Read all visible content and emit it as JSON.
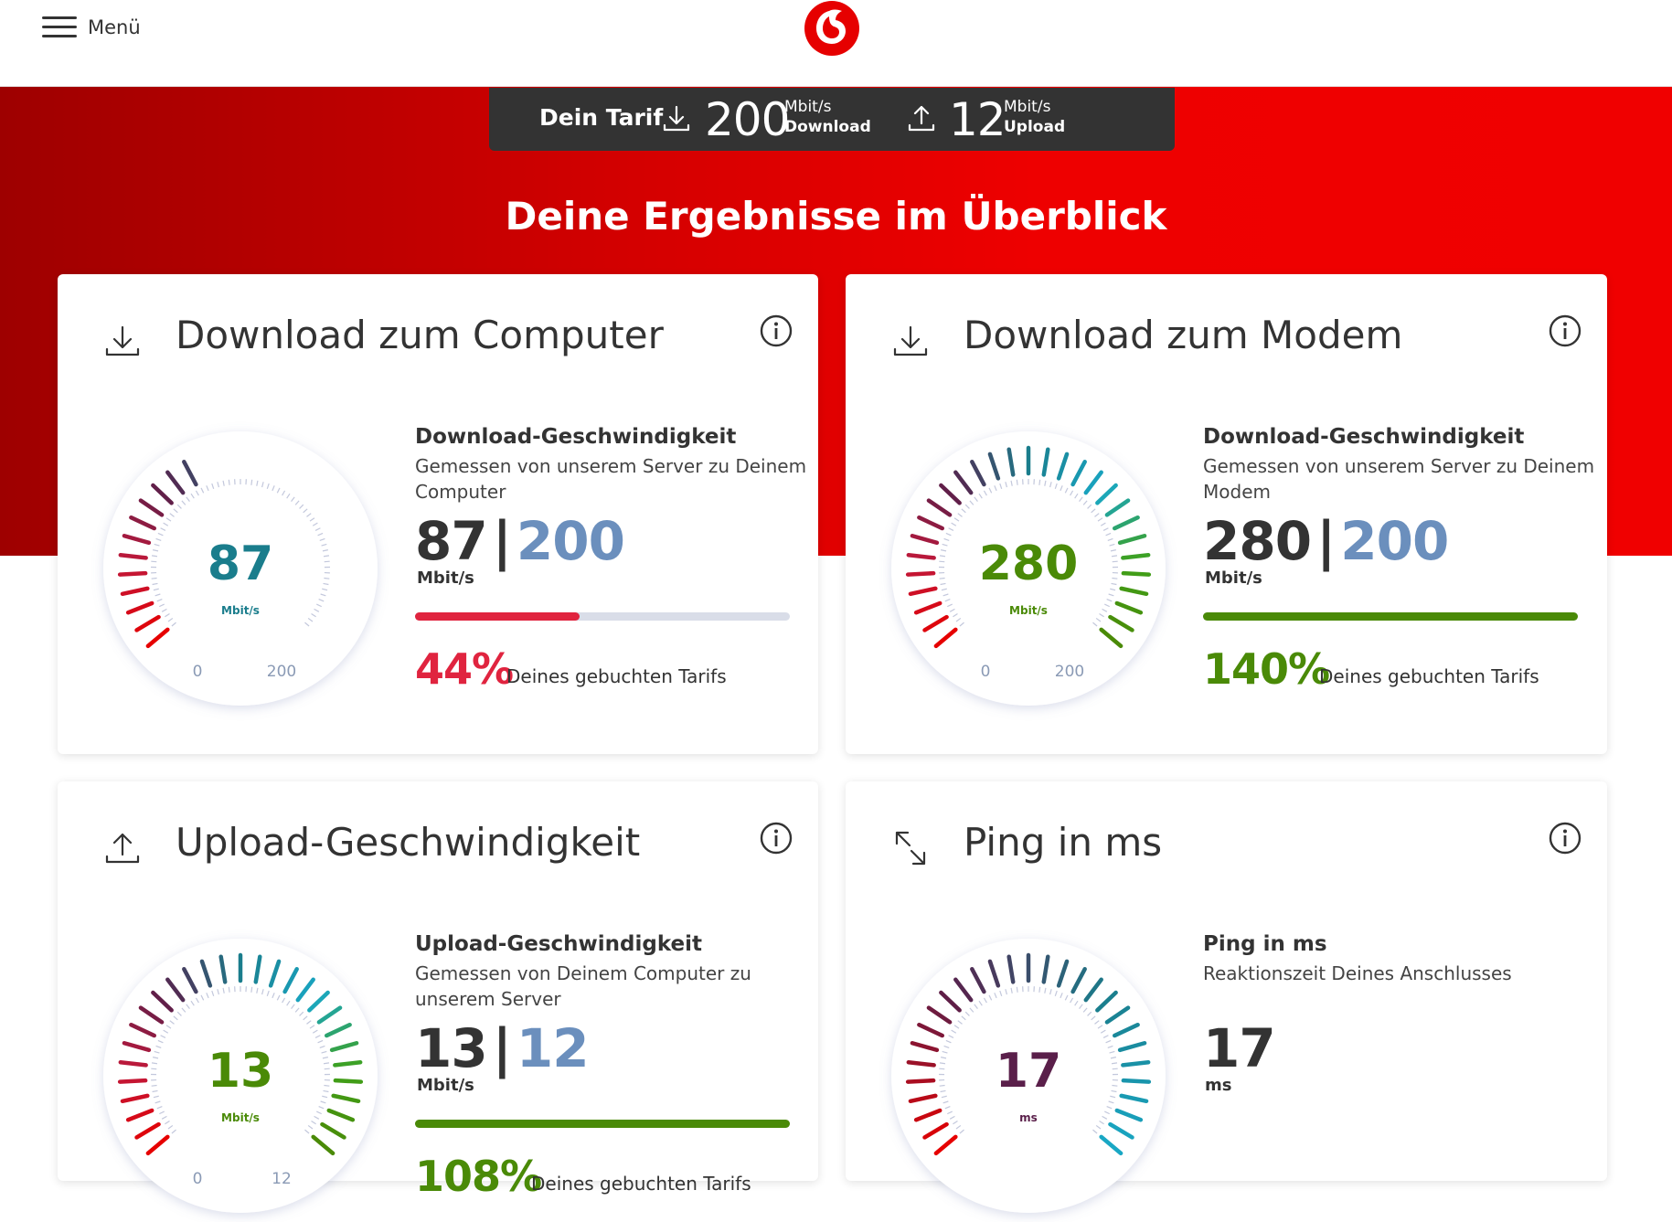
{
  "header": {
    "menu_label": "Menü"
  },
  "colors": {
    "brand": "#e60000",
    "tariff_value": "#6b8fbd",
    "good": "#4a8a07",
    "bad": "#e0243f",
    "teal": "#1a7d8c",
    "purple": "#5a1f4a"
  },
  "tariff": {
    "label": "Dein Tarif",
    "download_value": "200",
    "download_unit": "Mbit/s",
    "download_label": "Download",
    "upload_value": "12",
    "upload_unit": "Mbit/s",
    "upload_label": "Upload"
  },
  "hero_title": "Deine Ergebnisse im Überblick",
  "cards": [
    {
      "title": "Download zum Computer",
      "icon": "download-icon",
      "metric_title": "Download-Geschwindigkeit",
      "metric_sub": "Gemessen von unserem Server zu Deinem Computer",
      "measured": "87",
      "separator": "|",
      "tariff": "200",
      "unit": "Mbit/s",
      "percent": "44%",
      "percent_text": "Deines gebuchten Tarifs",
      "gauge": {
        "value": "87",
        "unit": "Mbit/s",
        "min": "0",
        "max": "200",
        "fraction": 0.44,
        "value_color": "#1a7d8c"
      },
      "bar_fraction": 0.44,
      "status_color": "#e0243f"
    },
    {
      "title": "Download zum Modem",
      "icon": "download-icon",
      "metric_title": "Download-Geschwindigkeit",
      "metric_sub": "Gemessen von unserem Server zu Deinem Modem",
      "measured": "280",
      "separator": "|",
      "tariff": "200",
      "unit": "Mbit/s",
      "percent": "140%",
      "percent_text": "Deines gebuchten Tarifs",
      "gauge": {
        "value": "280",
        "unit": "Mbit/s",
        "min": "0",
        "max": "200",
        "fraction": 1.0,
        "value_color": "#4a8a07"
      },
      "bar_fraction": 1.0,
      "status_color": "#4a8a07"
    },
    {
      "title": "Upload-Geschwindigkeit",
      "icon": "upload-icon",
      "metric_title": "Upload-Geschwindigkeit",
      "metric_sub": "Gemessen von Deinem Computer zu unserem Server",
      "measured": "13",
      "separator": "|",
      "tariff": "12",
      "unit": "Mbit/s",
      "percent": "108%",
      "percent_text": "Deines gebuchten Tarifs",
      "gauge": {
        "value": "13",
        "unit": "Mbit/s",
        "min": "0",
        "max": "12",
        "fraction": 1.0,
        "value_color": "#4a8a07"
      },
      "bar_fraction": 1.0,
      "status_color": "#4a8a07"
    },
    {
      "title": "Ping in ms",
      "icon": "ping-icon",
      "metric_title": "Ping in ms",
      "metric_sub": "Reaktionszeit Deines Anschlusses",
      "measured": "17",
      "unit": "ms",
      "gauge": {
        "value": "17",
        "unit": "ms",
        "min": "",
        "max": "",
        "fraction": 1.0,
        "value_color": "#5a1f4a"
      }
    }
  ]
}
